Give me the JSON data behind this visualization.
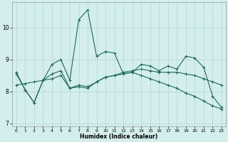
{
  "xlabel": "Humidex (Indice chaleur)",
  "xlim": [
    -0.5,
    23.5
  ],
  "ylim": [
    6.9,
    10.8
  ],
  "yticks": [
    7,
    8,
    9,
    10
  ],
  "xticks": [
    0,
    1,
    2,
    3,
    4,
    5,
    6,
    7,
    8,
    9,
    10,
    11,
    12,
    13,
    14,
    15,
    16,
    17,
    18,
    19,
    20,
    21,
    22,
    23
  ],
  "bg_color": "#d4eeee",
  "grid_color": "#b8d8d8",
  "line_color": "#1a6b5a",
  "line1_x": [
    0,
    1,
    2,
    3,
    4,
    5,
    6,
    7,
    8,
    9,
    10,
    11,
    12,
    13,
    14,
    15,
    16,
    17,
    18,
    19,
    20,
    21,
    22,
    23
  ],
  "line1_y": [
    8.6,
    8.05,
    7.65,
    8.35,
    8.85,
    9.0,
    8.35,
    10.25,
    10.55,
    9.1,
    9.25,
    9.2,
    8.55,
    8.6,
    8.85,
    8.8,
    8.65,
    8.8,
    8.7,
    9.1,
    9.05,
    8.75,
    7.85,
    7.5
  ],
  "line2_x": [
    0,
    1,
    2,
    3,
    4,
    5,
    6,
    7,
    8,
    9,
    10,
    11,
    12,
    13,
    14,
    15,
    16,
    17,
    18,
    19,
    20,
    21,
    22,
    23
  ],
  "line2_y": [
    8.2,
    8.25,
    8.3,
    8.35,
    8.4,
    8.5,
    8.1,
    8.2,
    8.15,
    8.3,
    8.45,
    8.5,
    8.6,
    8.65,
    8.7,
    8.65,
    8.6,
    8.6,
    8.6,
    8.55,
    8.5,
    8.4,
    8.3,
    8.2
  ],
  "line3_x": [
    0,
    1,
    2,
    3,
    4,
    5,
    6,
    7,
    8,
    9,
    10,
    11,
    12,
    13,
    14,
    15,
    16,
    17,
    18,
    19,
    20,
    21,
    22,
    23
  ],
  "line3_y": [
    8.55,
    8.05,
    7.65,
    8.35,
    8.55,
    8.65,
    8.1,
    8.15,
    8.1,
    8.3,
    8.45,
    8.5,
    8.55,
    8.6,
    8.5,
    8.4,
    8.3,
    8.2,
    8.1,
    7.95,
    7.85,
    7.7,
    7.55,
    7.45
  ]
}
